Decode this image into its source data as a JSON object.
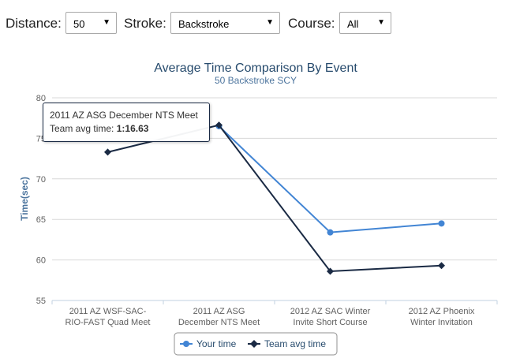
{
  "filters": {
    "distance": {
      "label": "Distance:",
      "value": "50"
    },
    "stroke": {
      "label": "Stroke:",
      "value": "Backstroke"
    },
    "course": {
      "label": "Course:",
      "value": "All"
    }
  },
  "tooltip": {
    "event": "2011 AZ ASG December NTS Meet",
    "metric_label": "Team avg time:",
    "metric_value": "1:16.63"
  },
  "colors": {
    "your_time": "#4285d4",
    "team_avg": "#1a2a44"
  },
  "chart_data": {
    "type": "line",
    "title": "Average Time Comparison By Event",
    "subtitle": "50 Backstroke SCY",
    "ylabel": "Time(sec)",
    "xlabel": "",
    "ylim": [
      55,
      80
    ],
    "yticks": [
      55,
      60,
      65,
      70,
      75,
      80
    ],
    "grid": true,
    "legend_position": "bottom-center",
    "categories": [
      [
        "2011 AZ WSF-SAC-",
        "RIO-FAST Quad Meet"
      ],
      [
        "2011 AZ ASG",
        "December NTS Meet"
      ],
      [
        "2012 AZ SAC Winter",
        "Invite Short Course"
      ],
      [
        "2012 AZ Phoenix",
        "Winter Invitation"
      ]
    ],
    "series": [
      {
        "name": "Your time",
        "values": [
          null,
          76.5,
          63.4,
          64.5
        ]
      },
      {
        "name": "Team avg time",
        "values": [
          73.3,
          76.63,
          58.6,
          59.3
        ]
      }
    ]
  }
}
